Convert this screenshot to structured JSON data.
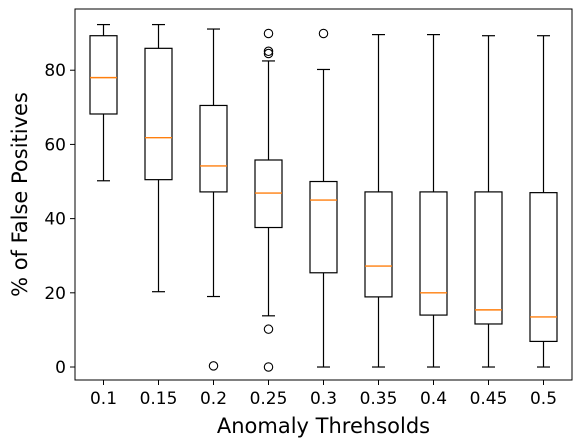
{
  "chart_data": {
    "type": "boxplot",
    "title": "",
    "xlabel": "Anomaly Threhsolds",
    "ylabel": "% of False Positives",
    "categories": [
      "0.1",
      "0.15",
      "0.2",
      "0.25",
      "0.3",
      "0.35",
      "0.4",
      "0.45",
      "0.5"
    ],
    "ylim": [
      -3.5,
      96.5
    ],
    "yticks": [
      0,
      20,
      40,
      60,
      80
    ],
    "grid": false,
    "boxes": [
      {
        "whisker_low": 50.2,
        "q1": 68.2,
        "median": 78.0,
        "q3": 89.3,
        "whisker_high": 92.3,
        "outliers": []
      },
      {
        "whisker_low": 20.3,
        "q1": 50.5,
        "median": 61.8,
        "q3": 85.9,
        "whisker_high": 92.3,
        "outliers": []
      },
      {
        "whisker_low": 19.0,
        "q1": 47.2,
        "median": 54.2,
        "q3": 70.5,
        "whisker_high": 91.1,
        "outliers": [
          0.3
        ]
      },
      {
        "whisker_low": 13.8,
        "q1": 37.6,
        "median": 46.9,
        "q3": 55.8,
        "whisker_high": 82.5,
        "outliers": [
          0.0,
          10.2,
          84.5,
          85.1,
          89.9
        ]
      },
      {
        "whisker_low": 0.0,
        "q1": 25.4,
        "median": 45.0,
        "q3": 50.0,
        "whisker_high": 80.2,
        "outliers": [
          89.9
        ]
      },
      {
        "whisker_low": 0.0,
        "q1": 18.9,
        "median": 27.2,
        "q3": 47.2,
        "whisker_high": 89.6,
        "outliers": []
      },
      {
        "whisker_low": 0.0,
        "q1": 14.0,
        "median": 20.0,
        "q3": 47.2,
        "whisker_high": 89.6,
        "outliers": []
      },
      {
        "whisker_low": 0.0,
        "q1": 11.6,
        "median": 15.4,
        "q3": 47.2,
        "whisker_high": 89.3,
        "outliers": []
      },
      {
        "whisker_low": 0.0,
        "q1": 6.9,
        "median": 13.5,
        "q3": 47.0,
        "whisker_high": 89.3,
        "outliers": []
      }
    ],
    "colors": {
      "box": "#000000",
      "median": "#ff7f0e",
      "outlier": "#000000"
    }
  }
}
